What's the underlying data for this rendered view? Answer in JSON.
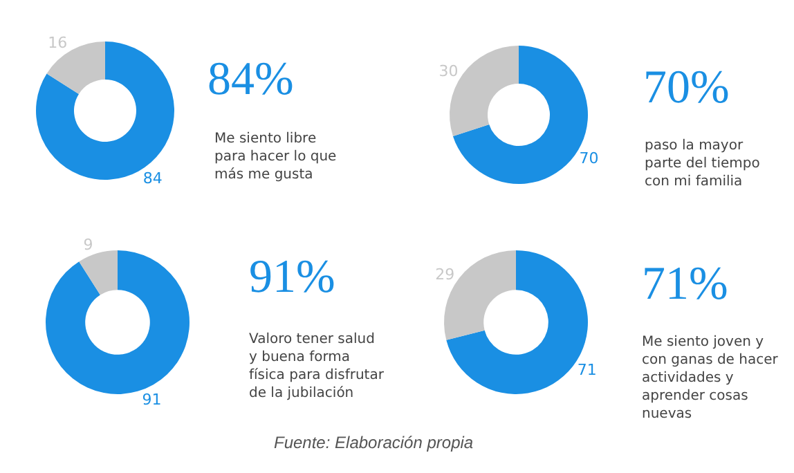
{
  "chart_data": [
    {
      "type": "donut",
      "title": "84%",
      "subtitle": "Me siento libre\npara hacer lo que\nmás me gusta",
      "categories": [
        null,
        null
      ],
      "values": [
        84,
        16
      ],
      "colors": [
        "#1a8fe3",
        "#c8c8c8"
      ],
      "data_labels": true,
      "legend": false
    },
    {
      "type": "donut",
      "title": "70%",
      "subtitle": "paso la mayor\nparte del tiempo\ncon mi familia",
      "categories": [
        null,
        null
      ],
      "values": [
        70,
        30
      ],
      "colors": [
        "#1a8fe3",
        "#c8c8c8"
      ],
      "data_labels": true,
      "legend": false
    },
    {
      "type": "donut",
      "title": "91%",
      "subtitle": "Valoro tener salud\ny buena forma\nfísica para disfrutar\nde la jubilación",
      "categories": [
        null,
        null
      ],
      "values": [
        91,
        9
      ],
      "colors": [
        "#1a8fe3",
        "#c8c8c8"
      ],
      "data_labels": true,
      "legend": false
    },
    {
      "type": "donut",
      "title": "71%",
      "subtitle": "Me siento joven y\ncon ganas de hacer\nactividades y\naprender cosas\nnuevas",
      "categories": [
        null,
        null
      ],
      "values": [
        71,
        29
      ],
      "colors": [
        "#1a8fe3",
        "#c8c8c8"
      ],
      "data_labels": true,
      "legend": false,
      "annotations": [
        "Fuente: Elaboración propia"
      ]
    }
  ]
}
